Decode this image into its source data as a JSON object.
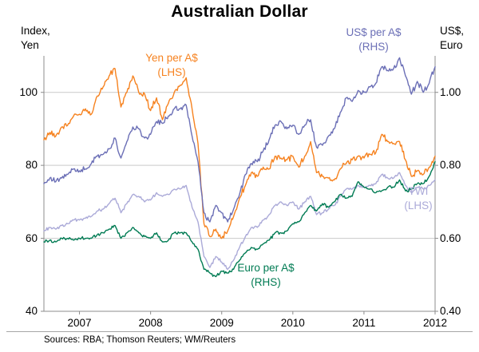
{
  "chart_data": {
    "type": "line",
    "title": "Australian Dollar",
    "frequency": "monthly",
    "x_start": 2006.5,
    "x_end": 2012.0,
    "x_tick_years": [
      2007,
      2008,
      2009,
      2010,
      2011,
      2012
    ],
    "x_tick_labels": [
      "2007",
      "2008",
      "2009",
      "2010",
      "2011",
      "2012"
    ],
    "grid": true,
    "left_axis": {
      "unit_lines": [
        "Index,",
        "Yen"
      ],
      "range": [
        40,
        110
      ],
      "ticks": [
        100,
        80,
        60,
        40
      ],
      "tick_labels": [
        "100",
        "80",
        "60",
        "40"
      ]
    },
    "right_axis": {
      "unit_lines": [
        "US$,",
        "Euro"
      ],
      "range": [
        0.4,
        1.1
      ],
      "ticks": [
        1.0,
        0.8,
        0.6,
        0.4
      ],
      "tick_labels": [
        "1.00",
        "0.80",
        "0.60",
        "0.40"
      ]
    },
    "series": [
      {
        "name": "Yen per A$",
        "axis": "LHS",
        "color": "#f6821f",
        "label_lines": [
          "Yen per A$",
          "(LHS)"
        ],
        "values": [
          87,
          89,
          88,
          90.5,
          91,
          93.5,
          94,
          95.5,
          94,
          99,
          101.5,
          104.5,
          106.5,
          96,
          100,
          104.5,
          100,
          99.5,
          95,
          98.5,
          92.5,
          97,
          100,
          102,
          104,
          95.5,
          86,
          64,
          60.5,
          62.5,
          60,
          62,
          66,
          71,
          74.5,
          78,
          77,
          79.5,
          79,
          82.5,
          82,
          81.5,
          82.5,
          79.5,
          82.5,
          86.5,
          78,
          77,
          76.5,
          76,
          79,
          80.5,
          81.5,
          82.5,
          82,
          83,
          83.5,
          88.5,
          86.5,
          86,
          86.5,
          81.5,
          77,
          78.5,
          77.5,
          79.5,
          82.5
        ]
      },
      {
        "name": "US$ per A$",
        "axis": "RHS",
        "color": "#6b6fb6",
        "label_lines": [
          "US$ per A$",
          "(RHS)"
        ],
        "values": [
          0.75,
          0.765,
          0.755,
          0.765,
          0.775,
          0.79,
          0.785,
          0.79,
          0.805,
          0.825,
          0.83,
          0.845,
          0.875,
          0.82,
          0.865,
          0.905,
          0.9,
          0.875,
          0.885,
          0.92,
          0.915,
          0.935,
          0.955,
          0.955,
          0.965,
          0.88,
          0.81,
          0.67,
          0.645,
          0.69,
          0.67,
          0.645,
          0.68,
          0.72,
          0.775,
          0.805,
          0.81,
          0.84,
          0.87,
          0.91,
          0.92,
          0.9,
          0.91,
          0.885,
          0.91,
          0.925,
          0.85,
          0.855,
          0.88,
          0.9,
          0.945,
          0.985,
          0.975,
          1.005,
          1.0,
          1.015,
          1.025,
          1.07,
          1.06,
          1.065,
          1.095,
          1.045,
          0.995,
          1.03,
          1.0,
          1.025,
          1.07
        ]
      },
      {
        "name": "TWI",
        "axis": "LHS",
        "color": "#abaad8",
        "label_lines": [
          "TWI",
          "(LHS)"
        ],
        "values": [
          62,
          63,
          62.5,
          63.5,
          64,
          65,
          65,
          65.5,
          66,
          67.5,
          68,
          69.5,
          71,
          67,
          69.5,
          72,
          71.5,
          70,
          70.5,
          72.5,
          71.5,
          72,
          73.5,
          73.5,
          74.5,
          68.5,
          64.5,
          55,
          52,
          55,
          53.5,
          51.5,
          54,
          57.5,
          60.5,
          63,
          63,
          65,
          66.5,
          69,
          70,
          69,
          70,
          68,
          70,
          71.5,
          66.5,
          67,
          68,
          69,
          71.5,
          73.5,
          73.5,
          74.5,
          74,
          74.5,
          75,
          77.5,
          76.5,
          76.5,
          78,
          74.5,
          72.5,
          74,
          73.5,
          74.5,
          76
        ]
      },
      {
        "name": "Euro per A$",
        "axis": "RHS",
        "color": "#007b53",
        "label_lines": [
          "Euro per A$",
          "(RHS)"
        ],
        "values": [
          0.59,
          0.595,
          0.59,
          0.6,
          0.6,
          0.595,
          0.6,
          0.6,
          0.6,
          0.61,
          0.615,
          0.625,
          0.635,
          0.6,
          0.615,
          0.63,
          0.615,
          0.605,
          0.6,
          0.615,
          0.59,
          0.595,
          0.615,
          0.615,
          0.615,
          0.59,
          0.57,
          0.515,
          0.505,
          0.495,
          0.51,
          0.505,
          0.515,
          0.54,
          0.56,
          0.575,
          0.57,
          0.585,
          0.595,
          0.615,
          0.615,
          0.62,
          0.64,
          0.645,
          0.67,
          0.69,
          0.675,
          0.695,
          0.685,
          0.7,
          0.72,
          0.71,
          0.715,
          0.755,
          0.74,
          0.735,
          0.725,
          0.73,
          0.74,
          0.74,
          0.76,
          0.73,
          0.735,
          0.75,
          0.75,
          0.77,
          0.81
        ]
      }
    ],
    "sources": "Sources: RBA; Thomson Reuters; WM/Reuters"
  }
}
